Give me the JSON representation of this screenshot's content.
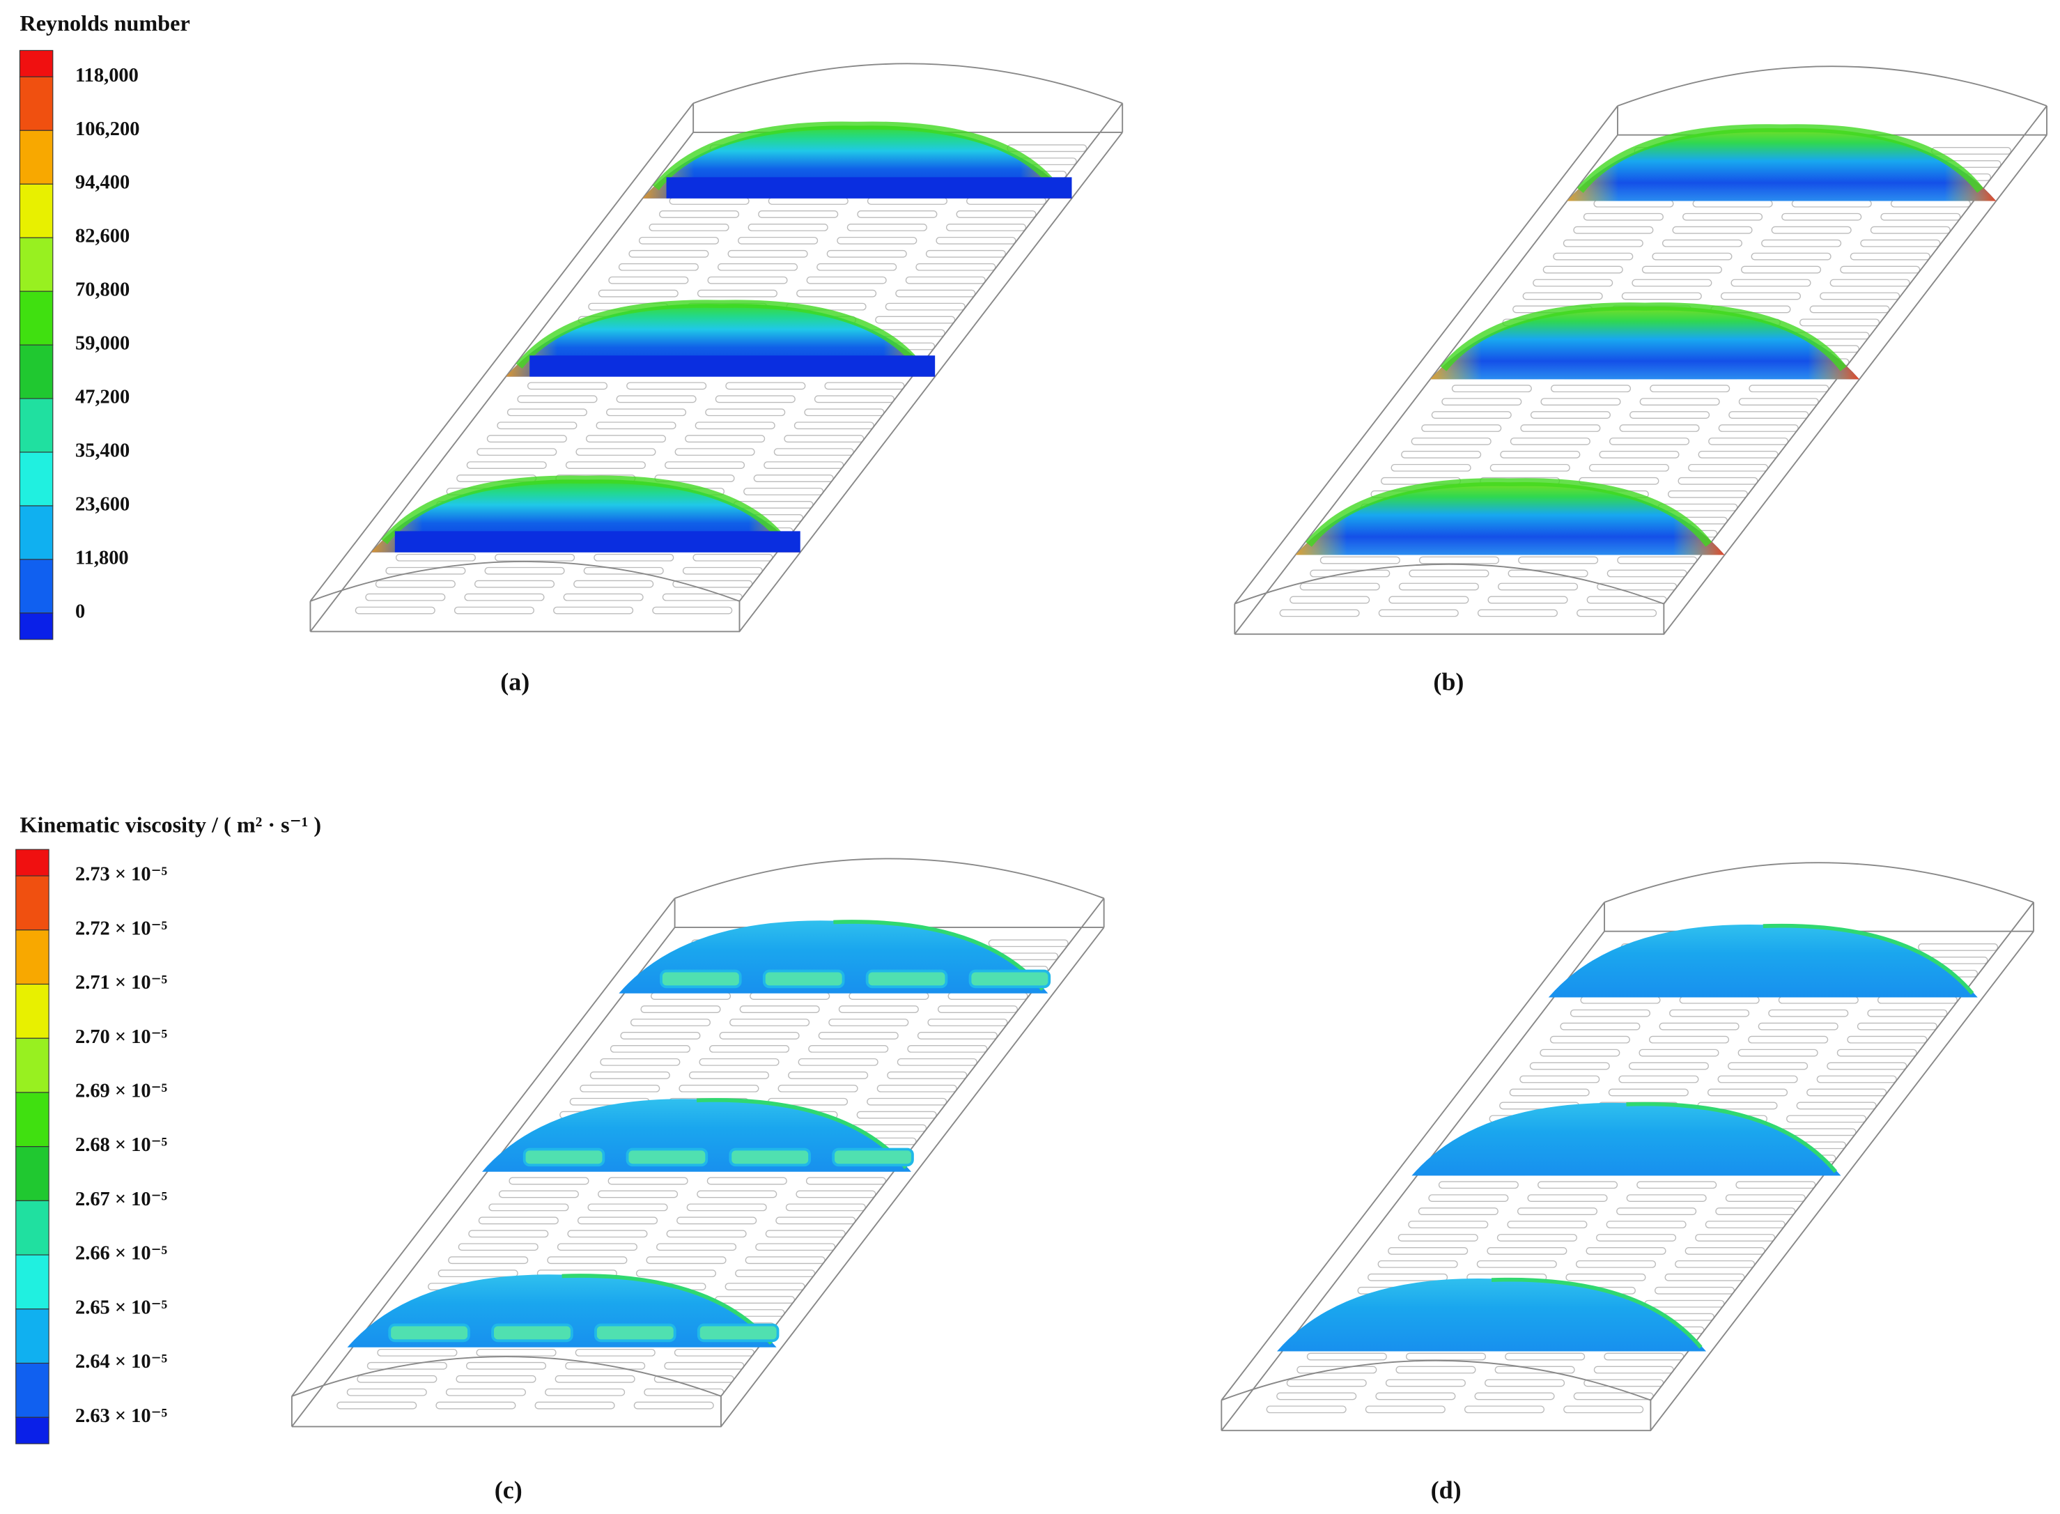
{
  "legends": [
    {
      "title": "Reynolds number",
      "labels": [
        "118,000",
        "106,200",
        "94,400",
        "82,600",
        "70,800",
        "59,000",
        "47,200",
        "35,400",
        "23,600",
        "11,800",
        "0"
      ]
    },
    {
      "title": "Kinematic viscosity / ( m² · s⁻¹ )",
      "labels": [
        "2.73 × 10⁻⁵",
        "2.72 × 10⁻⁵",
        "2.71 × 10⁻⁵",
        "2.70 × 10⁻⁵",
        "2.69 × 10⁻⁵",
        "2.68 × 10⁻⁵",
        "2.67 × 10⁻⁵",
        "2.66 × 10⁻⁵",
        "2.65 × 10⁻⁵",
        "2.64 × 10⁻⁵",
        "2.63 × 10⁻⁵"
      ]
    }
  ],
  "panels": [
    "(a)",
    "(b)",
    "(c)",
    "(d)"
  ]
}
